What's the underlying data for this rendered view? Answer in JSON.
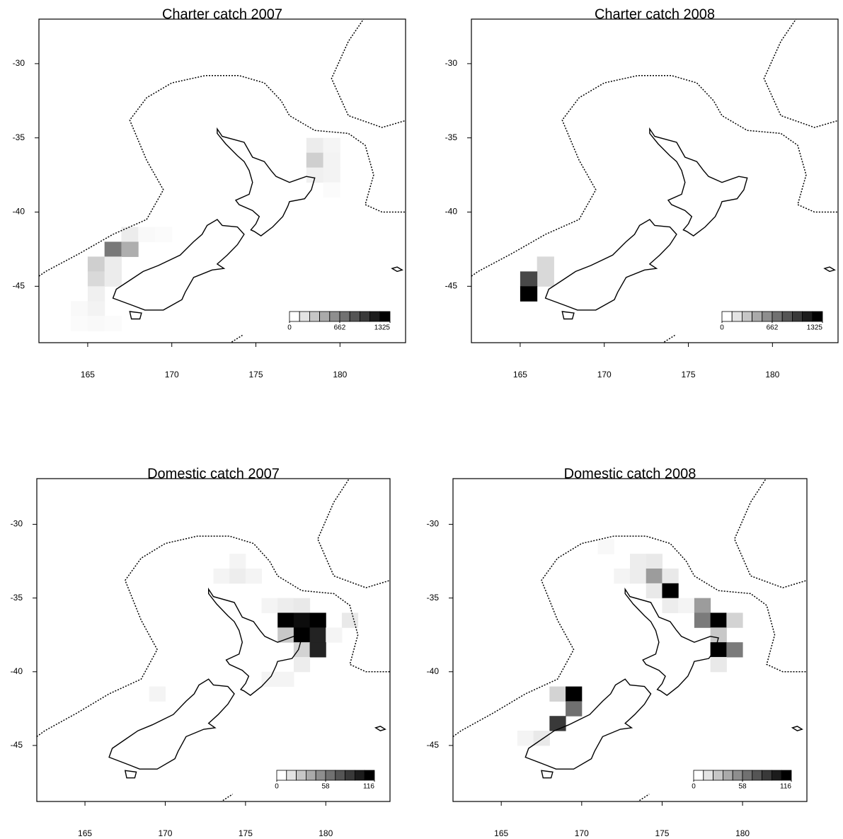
{
  "chart_data": [
    {
      "type": "heatmap",
      "title": "Charter catch 2007",
      "xlim": [
        162.1,
        183.9
      ],
      "ylim": [
        -48.8,
        -27.0
      ],
      "xticks": [
        165,
        170,
        175,
        180
      ],
      "yticks": [
        -30,
        -35,
        -40,
        -45
      ],
      "clim": [
        0,
        1325
      ],
      "cticks": [
        0,
        662,
        1325
      ],
      "colors": [
        "#ffffff",
        "#000000"
      ],
      "cells": [
        {
          "lon": 178.5,
          "lat": -35.5,
          "value": 100
        },
        {
          "lon": 179.5,
          "lat": -35.5,
          "value": 50
        },
        {
          "lon": 178.5,
          "lat": -36.5,
          "value": 250
        },
        {
          "lon": 179.5,
          "lat": -36.5,
          "value": 60
        },
        {
          "lon": 178.5,
          "lat": -37.5,
          "value": 80
        },
        {
          "lon": 179.5,
          "lat": -37.5,
          "value": 60
        },
        {
          "lon": 179.5,
          "lat": -38.5,
          "value": 20
        },
        {
          "lon": 167.5,
          "lat": -41.5,
          "value": 100
        },
        {
          "lon": 168.5,
          "lat": -41.5,
          "value": 30
        },
        {
          "lon": 169.5,
          "lat": -41.5,
          "value": 20
        },
        {
          "lon": 166.5,
          "lat": -42.5,
          "value": 700
        },
        {
          "lon": 167.5,
          "lat": -42.5,
          "value": 420
        },
        {
          "lon": 165.5,
          "lat": -43.5,
          "value": 250
        },
        {
          "lon": 166.5,
          "lat": -43.5,
          "value": 100
        },
        {
          "lon": 165.5,
          "lat": -44.5,
          "value": 200
        },
        {
          "lon": 166.5,
          "lat": -44.5,
          "value": 100
        },
        {
          "lon": 165.5,
          "lat": -45.5,
          "value": 80
        },
        {
          "lon": 164.5,
          "lat": -46.5,
          "value": 30
        },
        {
          "lon": 165.5,
          "lat": -46.5,
          "value": 60
        },
        {
          "lon": 164.5,
          "lat": -47.5,
          "value": 20
        },
        {
          "lon": 165.5,
          "lat": -47.5,
          "value": 30
        },
        {
          "lon": 166.5,
          "lat": -47.5,
          "value": 20
        }
      ]
    },
    {
      "type": "heatmap",
      "title": "Charter catch 2008",
      "xlim": [
        162.1,
        183.9
      ],
      "ylim": [
        -48.8,
        -27.0
      ],
      "xticks": [
        165,
        170,
        175,
        180
      ],
      "yticks": [
        -30,
        -35,
        -40,
        -45
      ],
      "clim": [
        0,
        1325
      ],
      "cticks": [
        0,
        662,
        1325
      ],
      "colors": [
        "#ffffff",
        "#000000"
      ],
      "cells": [
        {
          "lon": 166.5,
          "lat": -43.5,
          "value": 200
        },
        {
          "lon": 166.5,
          "lat": -44.5,
          "value": 200
        },
        {
          "lon": 165.5,
          "lat": -44.5,
          "value": 950
        },
        {
          "lon": 165.5,
          "lat": -45.5,
          "value": 1325
        }
      ]
    },
    {
      "type": "heatmap",
      "title": "Domestic catch 2007",
      "xlim": [
        162.0,
        184.0
      ],
      "ylim": [
        -48.8,
        -26.9
      ],
      "xticks": [
        165,
        170,
        175,
        180
      ],
      "yticks": [
        -30,
        -35,
        -40,
        -45
      ],
      "clim": [
        0,
        116
      ],
      "cticks": [
        0,
        58,
        116
      ],
      "colors": [
        "#ffffff",
        "#000000"
      ],
      "cells": [
        {
          "lon": 174.5,
          "lat": -32.5,
          "value": 5
        },
        {
          "lon": 173.5,
          "lat": -33.5,
          "value": 5
        },
        {
          "lon": 174.5,
          "lat": -33.5,
          "value": 8
        },
        {
          "lon": 175.5,
          "lat": -33.5,
          "value": 5
        },
        {
          "lon": 176.5,
          "lat": -35.5,
          "value": 5
        },
        {
          "lon": 177.5,
          "lat": -35.5,
          "value": 8
        },
        {
          "lon": 178.5,
          "lat": -35.5,
          "value": 10
        },
        {
          "lon": 177.5,
          "lat": -36.5,
          "value": 116
        },
        {
          "lon": 178.5,
          "lat": -36.5,
          "value": 110
        },
        {
          "lon": 179.5,
          "lat": -36.5,
          "value": 116
        },
        {
          "lon": 181.5,
          "lat": -36.5,
          "value": 10
        },
        {
          "lon": 177.5,
          "lat": -37.5,
          "value": 25
        },
        {
          "lon": 178.5,
          "lat": -37.5,
          "value": 116
        },
        {
          "lon": 179.5,
          "lat": -37.5,
          "value": 100
        },
        {
          "lon": 180.5,
          "lat": -37.5,
          "value": 5
        },
        {
          "lon": 178.5,
          "lat": -38.5,
          "value": 20
        },
        {
          "lon": 179.5,
          "lat": -38.5,
          "value": 100
        },
        {
          "lon": 178.5,
          "lat": -39.5,
          "value": 8
        },
        {
          "lon": 176.5,
          "lat": -40.5,
          "value": 5
        },
        {
          "lon": 177.5,
          "lat": -40.5,
          "value": 5
        },
        {
          "lon": 169.5,
          "lat": -41.5,
          "value": 5
        }
      ]
    },
    {
      "type": "heatmap",
      "title": "Domestic catch 2008",
      "xlim": [
        162.0,
        184.0
      ],
      "ylim": [
        -48.8,
        -26.9
      ],
      "xticks": [
        165,
        170,
        175,
        180
      ],
      "yticks": [
        -30,
        -35,
        -40,
        -45
      ],
      "clim": [
        0,
        116
      ],
      "cticks": [
        0,
        58,
        116
      ],
      "colors": [
        "#ffffff",
        "#000000"
      ],
      "cells": [
        {
          "lon": 171.5,
          "lat": -31.5,
          "value": 3
        },
        {
          "lon": 173.5,
          "lat": -32.5,
          "value": 8
        },
        {
          "lon": 174.5,
          "lat": -32.5,
          "value": 10
        },
        {
          "lon": 172.5,
          "lat": -33.5,
          "value": 5
        },
        {
          "lon": 173.5,
          "lat": -33.5,
          "value": 8
        },
        {
          "lon": 174.5,
          "lat": -33.5,
          "value": 45
        },
        {
          "lon": 175.5,
          "lat": -33.5,
          "value": 10
        },
        {
          "lon": 174.5,
          "lat": -34.5,
          "value": 10
        },
        {
          "lon": 175.5,
          "lat": -34.5,
          "value": 116
        },
        {
          "lon": 175.5,
          "lat": -35.5,
          "value": 8
        },
        {
          "lon": 176.5,
          "lat": -35.5,
          "value": 5
        },
        {
          "lon": 177.5,
          "lat": -35.5,
          "value": 45
        },
        {
          "lon": 177.5,
          "lat": -36.5,
          "value": 60
        },
        {
          "lon": 178.5,
          "lat": -36.5,
          "value": 116
        },
        {
          "lon": 179.5,
          "lat": -36.5,
          "value": 20
        },
        {
          "lon": 178.5,
          "lat": -37.5,
          "value": 25
        },
        {
          "lon": 178.5,
          "lat": -38.5,
          "value": 116
        },
        {
          "lon": 179.5,
          "lat": -38.5,
          "value": 60
        },
        {
          "lon": 178.5,
          "lat": -39.5,
          "value": 10
        },
        {
          "lon": 168.5,
          "lat": -41.5,
          "value": 20
        },
        {
          "lon": 169.5,
          "lat": -41.5,
          "value": 116
        },
        {
          "lon": 169.5,
          "lat": -42.5,
          "value": 65
        },
        {
          "lon": 168.5,
          "lat": -43.5,
          "value": 90
        },
        {
          "lon": 166.5,
          "lat": -44.5,
          "value": 5
        },
        {
          "lon": 167.5,
          "lat": -44.5,
          "value": 10
        }
      ]
    }
  ]
}
